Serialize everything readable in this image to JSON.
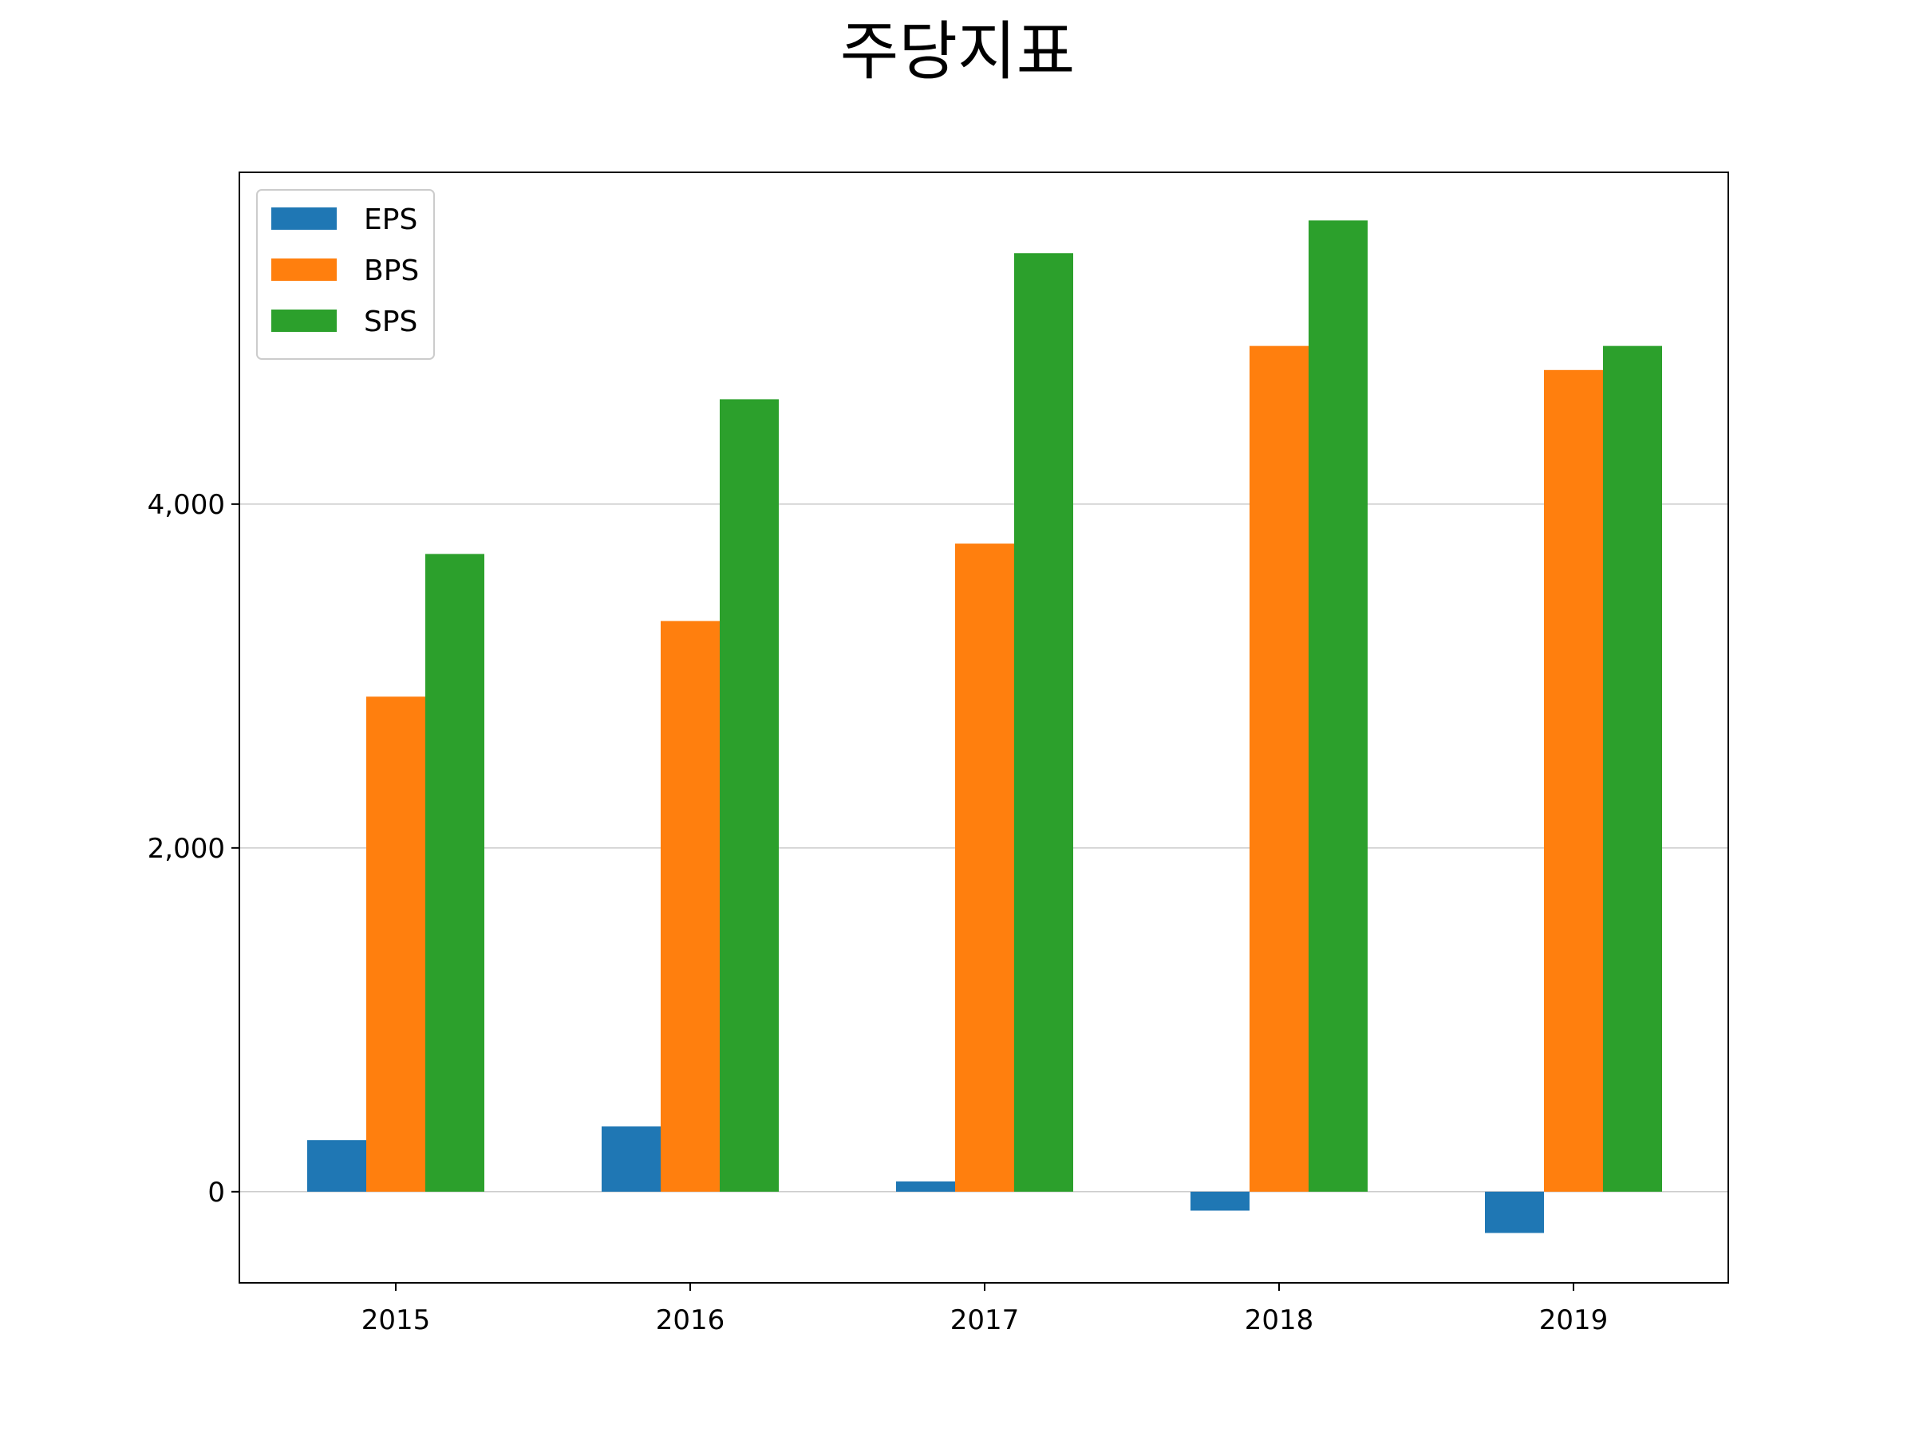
{
  "chart_data": {
    "type": "bar",
    "title": "주당지표",
    "xlabel": "",
    "ylabel": "",
    "categories": [
      "2015",
      "2016",
      "2017",
      "2018",
      "2019"
    ],
    "series": [
      {
        "name": "EPS",
        "color": "#1f77b4",
        "values": [
          300,
          380,
          60,
          -110,
          -240
        ]
      },
      {
        "name": "BPS",
        "color": "#ff7f0e",
        "values": [
          2880,
          3320,
          3770,
          4920,
          4780
        ]
      },
      {
        "name": "SPS",
        "color": "#2ca02c",
        "values": [
          3710,
          4610,
          5460,
          5650,
          4920
        ]
      }
    ],
    "yticks": [
      0,
      2000,
      4000
    ],
    "ytick_labels": [
      "0",
      "2,000",
      "4,000"
    ],
    "ylim": [
      -530,
      5930
    ],
    "grid": "horizontal",
    "legend_position": "upper-left"
  }
}
